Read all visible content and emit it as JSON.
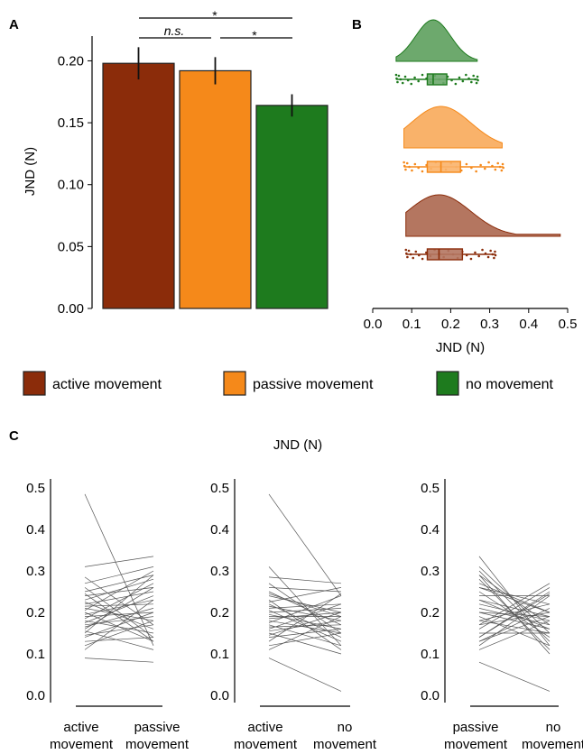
{
  "panels": {
    "a": "A",
    "b": "B",
    "c": "C"
  },
  "colors": {
    "active": "#8B2C0A",
    "passive": "#F5891A",
    "none": "#1E7B1E"
  },
  "legend": [
    {
      "key": "active",
      "label": "active movement"
    },
    {
      "key": "passive",
      "label": "passive movement"
    },
    {
      "key": "none",
      "label": "no movement"
    }
  ],
  "chart_data": [
    {
      "id": "A",
      "type": "bar",
      "ylabel": "JND (N)",
      "ylim": [
        0,
        0.22
      ],
      "yticks": [
        "0.00",
        "0.05",
        "0.10",
        "0.15",
        "0.20"
      ],
      "categories": [
        "active movement",
        "passive movement",
        "no movement"
      ],
      "values": [
        0.198,
        0.192,
        0.164
      ],
      "error": [
        0.013,
        0.011,
        0.009
      ],
      "significance": [
        {
          "from": 0,
          "to": 2,
          "label": "*"
        },
        {
          "from": 0,
          "to": 1,
          "label": "n.s."
        },
        {
          "from": 1,
          "to": 2,
          "label": "*"
        }
      ]
    },
    {
      "id": "B",
      "type": "raincloud",
      "xlabel": "JND (N)",
      "xlim": [
        0,
        0.5
      ],
      "xticks": [
        "0.0",
        "0.1",
        "0.2",
        "0.3",
        "0.4",
        "0.5"
      ],
      "series": [
        {
          "key": "none",
          "q1": 0.14,
          "median": 0.155,
          "q3": 0.19,
          "min": 0.06,
          "max": 0.27
        },
        {
          "key": "passive",
          "q1": 0.14,
          "median": 0.175,
          "q3": 0.225,
          "min": 0.08,
          "max": 0.335
        },
        {
          "key": "active",
          "q1": 0.14,
          "median": 0.17,
          "q3": 0.23,
          "min": 0.085,
          "max": 0.315
        }
      ]
    },
    {
      "id": "C",
      "type": "line",
      "title": "JND (N)",
      "ylim": [
        0,
        0.5
      ],
      "yticks": [
        "0.0",
        "0.1",
        "0.2",
        "0.3",
        "0.4",
        "0.5"
      ],
      "subplots": [
        {
          "xlabels": [
            [
              "active",
              "movement"
            ],
            [
              "passive",
              "movement"
            ]
          ]
        },
        {
          "xlabels": [
            [
              "active",
              "movement"
            ],
            [
              "no",
              "movement"
            ]
          ]
        },
        {
          "xlabels": [
            [
              "passive",
              "movement"
            ],
            [
              "no",
              "movement"
            ]
          ]
        }
      ],
      "subjects": {
        "active": [
          0.485,
          0.31,
          0.285,
          0.27,
          0.26,
          0.25,
          0.245,
          0.24,
          0.23,
          0.225,
          0.22,
          0.215,
          0.21,
          0.205,
          0.2,
          0.195,
          0.19,
          0.185,
          0.18,
          0.175,
          0.17,
          0.165,
          0.16,
          0.155,
          0.15,
          0.145,
          0.14,
          0.13,
          0.12,
          0.11,
          0.09
        ],
        "passive": [
          0.12,
          0.335,
          0.17,
          0.31,
          0.14,
          0.29,
          0.13,
          0.26,
          0.28,
          0.16,
          0.25,
          0.22,
          0.18,
          0.3,
          0.13,
          0.23,
          0.2,
          0.27,
          0.15,
          0.24,
          0.19,
          0.21,
          0.26,
          0.11,
          0.29,
          0.17,
          0.2,
          0.14,
          0.18,
          0.23,
          0.08
        ],
        "none": [
          0.24,
          0.12,
          0.27,
          0.15,
          0.25,
          0.17,
          0.19,
          0.2,
          0.11,
          0.26,
          0.14,
          0.18,
          0.22,
          0.13,
          0.21,
          0.16,
          0.19,
          0.2,
          0.15,
          0.24,
          0.12,
          0.17,
          0.22,
          0.18,
          0.1,
          0.2,
          0.16,
          0.245,
          0.15,
          0.19,
          0.01
        ]
      }
    }
  ]
}
